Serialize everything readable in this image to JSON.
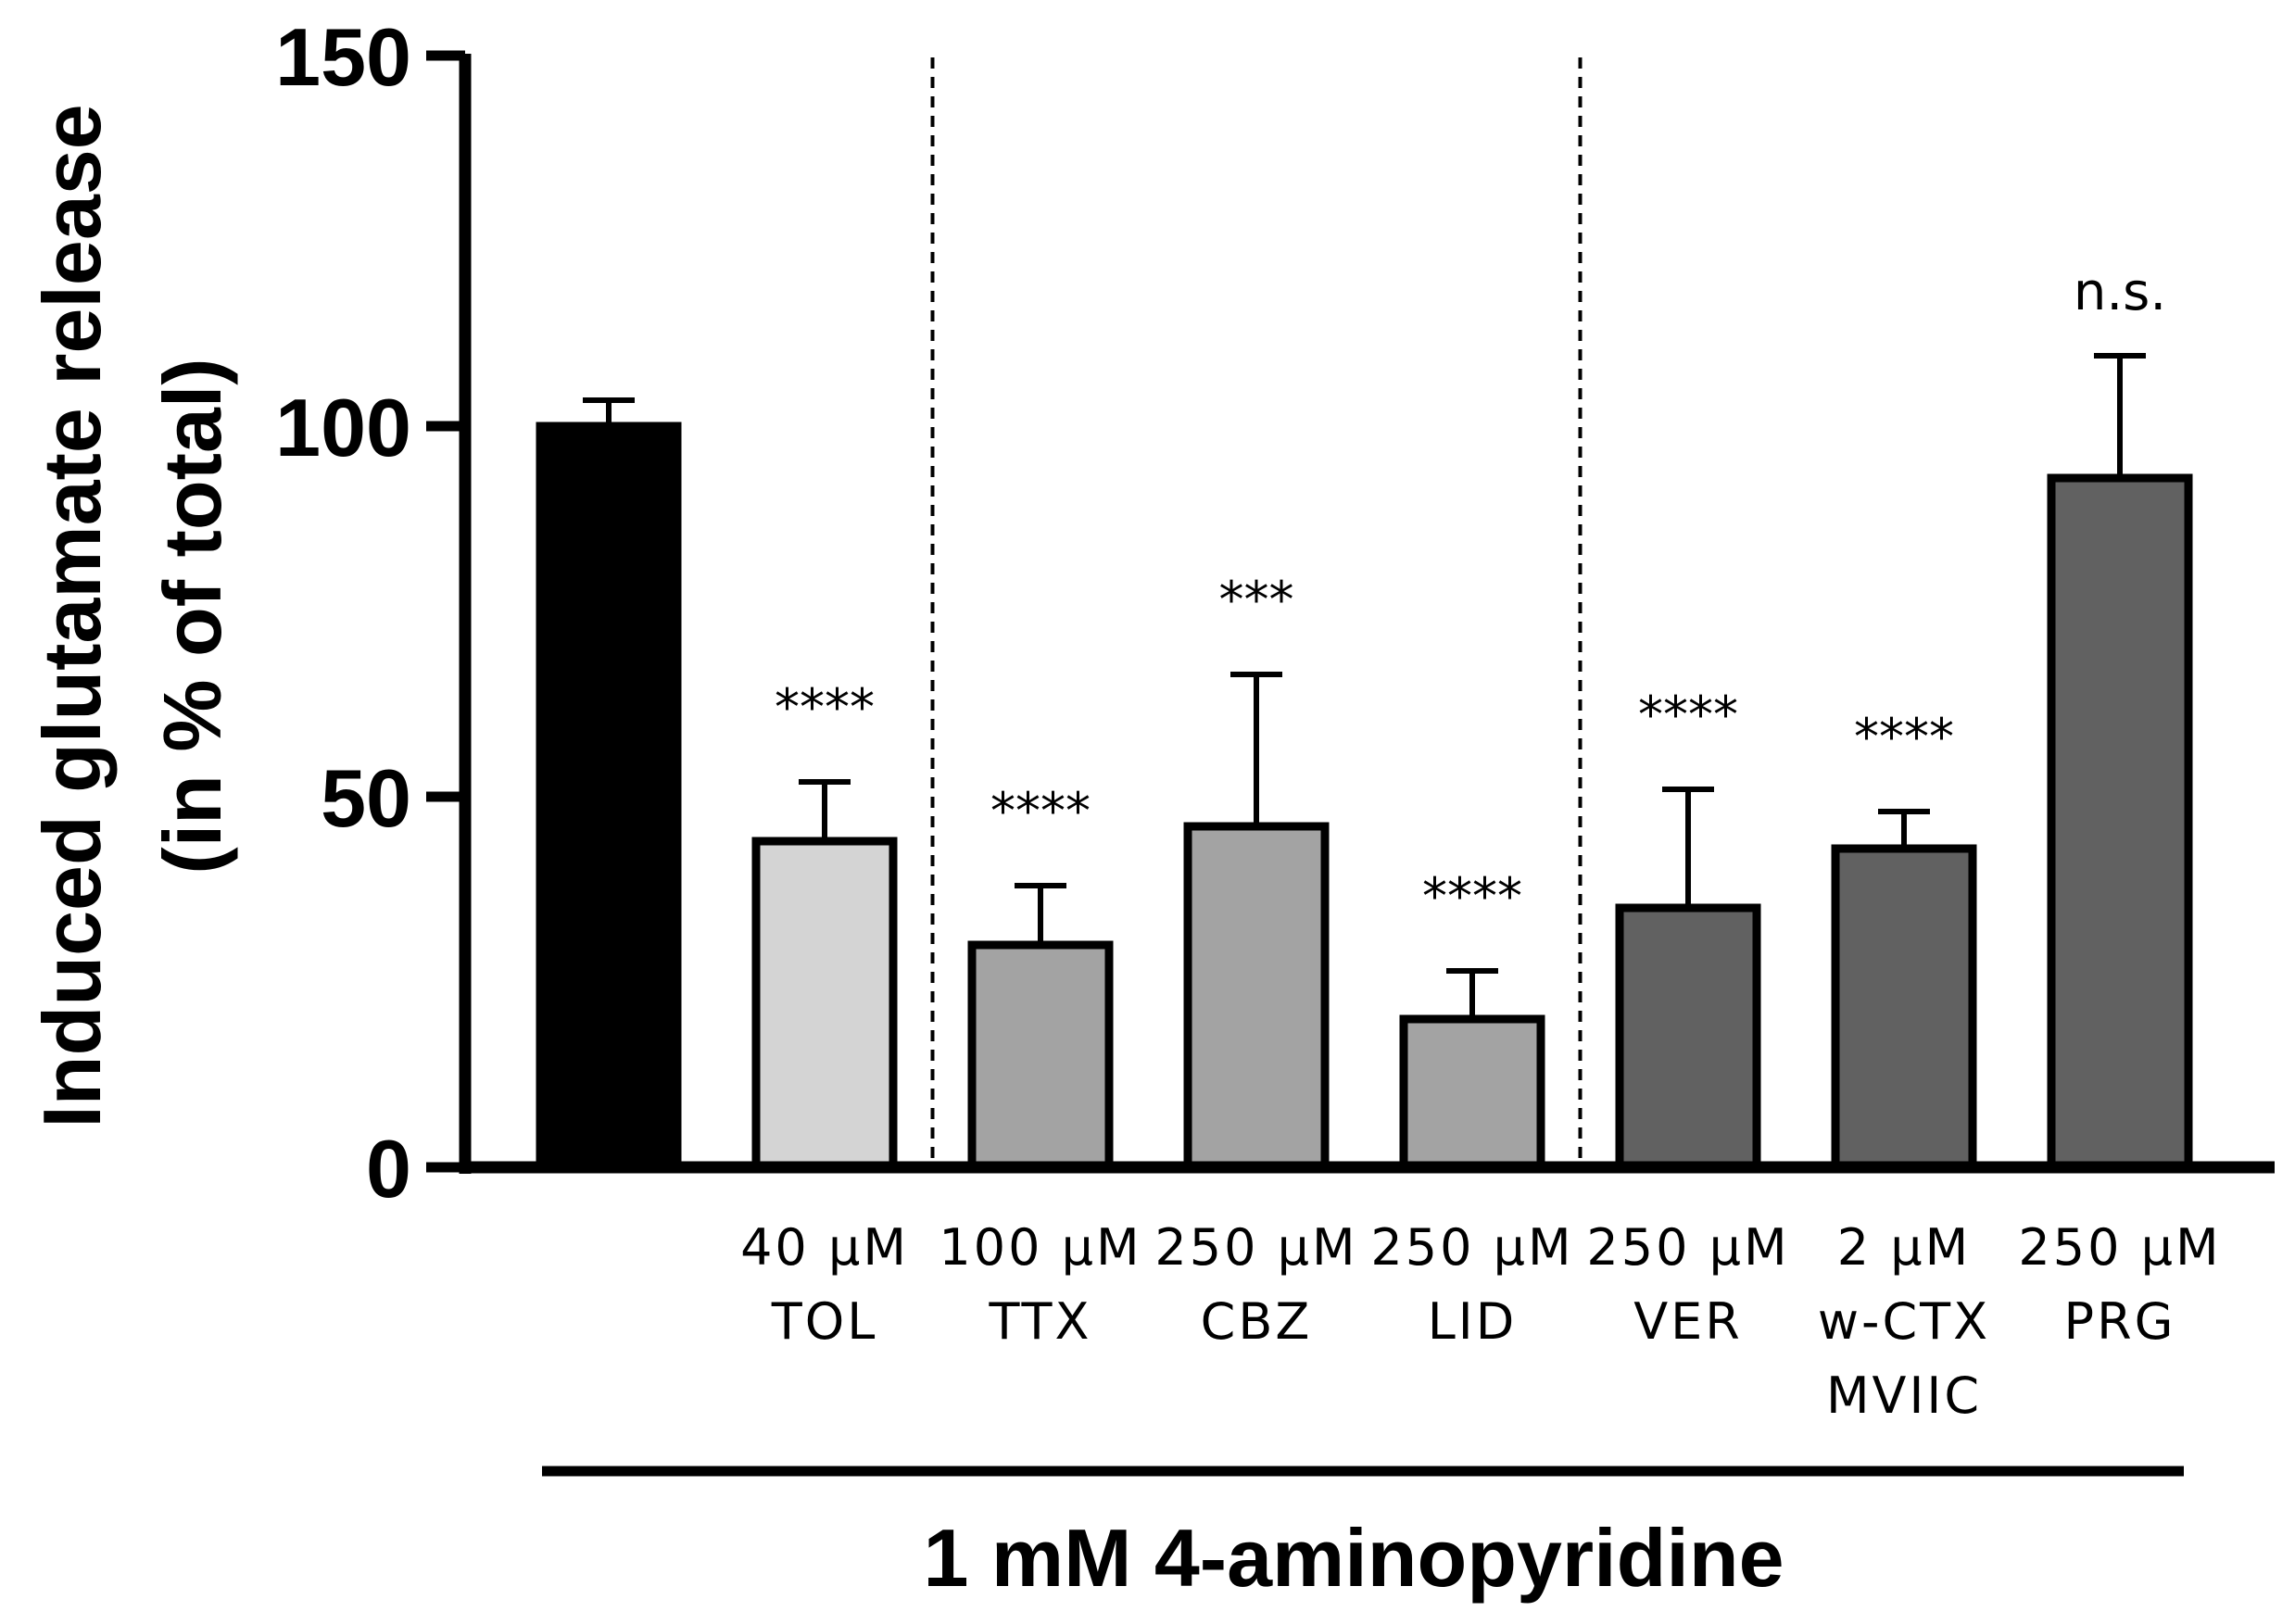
{
  "chart_data": {
    "type": "bar",
    "title": "",
    "ylabel_line1": "Induced glutamate release",
    "ylabel_line2": "(in % of total)",
    "xlabel": "1 mM 4-aminopyridine",
    "ylim": [
      0,
      150
    ],
    "yticks": [
      "0",
      "50",
      "100",
      "150"
    ],
    "grid": false,
    "categories": [
      {
        "label": [],
        "value": 100,
        "error": 3.5,
        "fill": "#000000",
        "annotation": ""
      },
      {
        "label": [
          "40 µM",
          "TOL"
        ],
        "value": 44,
        "error": 8,
        "fill": "#d4d4d4",
        "annotation": "****"
      },
      {
        "label": [
          "100 µM",
          "TTX"
        ],
        "value": 30,
        "error": 8,
        "fill": "#a3a3a3",
        "annotation": "****"
      },
      {
        "label": [
          "250 µM",
          "CBZ"
        ],
        "value": 46,
        "error": 20.5,
        "fill": "#a3a3a3",
        "annotation": "***"
      },
      {
        "label": [
          "250 µM",
          "LID"
        ],
        "value": 20,
        "error": 6.5,
        "fill": "#a3a3a3",
        "annotation": "****"
      },
      {
        "label": [
          "250 µM",
          "VER"
        ],
        "value": 35,
        "error": 16,
        "fill": "#616161",
        "annotation": "****"
      },
      {
        "label": [
          "2 µM",
          "w-CTX",
          "MVIIC"
        ],
        "value": 43,
        "error": 5,
        "fill": "#616161",
        "annotation": "****"
      },
      {
        "label": [
          "250 µM",
          "PRG"
        ],
        "value": 93,
        "error": 16.5,
        "fill": "#616161",
        "annotation": "n.s."
      }
    ],
    "group_separators_after_index": [
      1,
      4
    ],
    "colors": {
      "axis": "#000000",
      "bar_stroke": "#000000"
    }
  }
}
